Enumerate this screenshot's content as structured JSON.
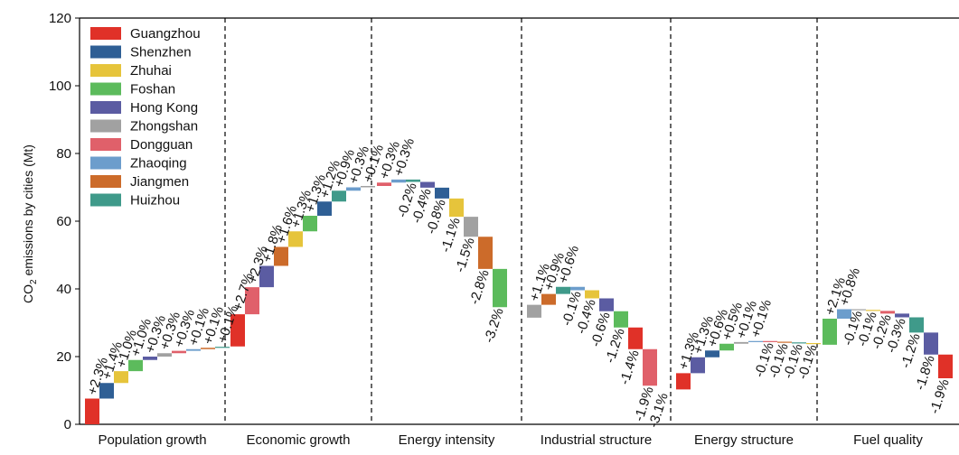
{
  "chart_data": {
    "type": "bar",
    "subtype": "waterfall",
    "ylabel": "CO2 emissions by cities (Mt)",
    "ylabel_main": "CO",
    "ylabel_sub": "2",
    "ylabel_rest": " emissions by cities (Mt)",
    "ylim": [
      0,
      120
    ],
    "yticks": [
      0,
      20,
      40,
      60,
      80,
      100,
      120
    ],
    "grid": false,
    "legend_position": "top-left",
    "cities": [
      {
        "name": "Guangzhou",
        "color": "#e03128"
      },
      {
        "name": "Shenzhen",
        "color": "#2f5f95"
      },
      {
        "name": "Zhuhai",
        "color": "#e6c43b"
      },
      {
        "name": "Foshan",
        "color": "#5cbb5c"
      },
      {
        "name": "Hong Kong",
        "color": "#5b5ca2"
      },
      {
        "name": "Zhongshan",
        "color": "#a1a1a1"
      },
      {
        "name": "Dongguan",
        "color": "#e0606a"
      },
      {
        "name": "Zhaoqing",
        "color": "#6c9dcc"
      },
      {
        "name": "Jiangmen",
        "color": "#cc6b2a"
      },
      {
        "name": "Huizhou",
        "color": "#3f9a8a"
      }
    ],
    "groups": [
      {
        "label": "Population growth",
        "start": 0,
        "bars": [
          {
            "city": "Guangzhou",
            "delta": 7.6,
            "label": "+2.3%"
          },
          {
            "city": "Shenzhen",
            "delta": 4.6,
            "label": "+1.4%"
          },
          {
            "city": "Zhuhai",
            "delta": 3.5,
            "label": "+1.0%"
          },
          {
            "city": "Foshan",
            "delta": 3.3,
            "label": "+1.0%"
          },
          {
            "city": "Hong Kong",
            "delta": 1.0,
            "label": "+0.3%"
          },
          {
            "city": "Zhongshan",
            "delta": 1.0,
            "label": "+0.3%"
          },
          {
            "city": "Dongguan",
            "delta": 0.7,
            "label": "+0.3%"
          },
          {
            "city": "Zhaoqing",
            "delta": 0.5,
            "label": "+0.1%"
          },
          {
            "city": "Jiangmen",
            "delta": 0.4,
            "label": "+0.1%"
          },
          {
            "city": "Huizhou",
            "delta": 0.3,
            "label": "+0.1%"
          }
        ]
      },
      {
        "label": "Economic growth",
        "start": 23,
        "bars": [
          {
            "city": "Guangzhou",
            "delta": 9.5,
            "label": "+2.7%"
          },
          {
            "city": "Dongguan",
            "delta": 8.0,
            "label": "+2.3%"
          },
          {
            "city": "Hong Kong",
            "delta": 6.3,
            "label": "+1.8%"
          },
          {
            "city": "Jiangmen",
            "delta": 5.6,
            "label": "+1.6%"
          },
          {
            "city": "Zhuhai",
            "delta": 4.6,
            "label": "+1.3%"
          },
          {
            "city": "Foshan",
            "delta": 4.6,
            "label": "+1.3%"
          },
          {
            "city": "Shenzhen",
            "delta": 4.2,
            "label": "+1.2%"
          },
          {
            "city": "Huizhou",
            "delta": 3.2,
            "label": "+0.9%"
          },
          {
            "city": "Zhaoqing",
            "delta": 1.0,
            "label": "+0.3%"
          },
          {
            "city": "Zhongshan",
            "delta": 0.4,
            "label": "+0.1%"
          }
        ]
      },
      {
        "label": "Energy intensity",
        "start": 70.4,
        "bars": [
          {
            "city": "Dongguan",
            "delta": 1.0,
            "label": "+0.3%"
          },
          {
            "city": "Zhaoqing",
            "delta": 0.9,
            "label": "+0.3%"
          },
          {
            "city": "Huizhou",
            "delta": -0.7,
            "label": "-0.2%"
          },
          {
            "city": "Hong Kong",
            "delta": -1.7,
            "label": "-0.4%"
          },
          {
            "city": "Shenzhen",
            "delta": -3.2,
            "label": "-0.8%"
          },
          {
            "city": "Zhuhai",
            "delta": -5.4,
            "label": "-1.1%"
          },
          {
            "city": "Zhongshan",
            "delta": -5.9,
            "label": "-1.5%"
          },
          {
            "city": "Jiangmen",
            "delta": -9.5,
            "label": "-2.8%"
          },
          {
            "city": "Foshan",
            "delta": -11.3,
            "label": "-3.2%"
          }
        ]
      },
      {
        "label": "Industrial structure",
        "start": 31.5,
        "bars": [
          {
            "city": "Zhongshan",
            "delta": 3.8,
            "label": "+1.1%"
          },
          {
            "city": "Jiangmen",
            "delta": 3.2,
            "label": "+0.9%"
          },
          {
            "city": "Huizhou",
            "delta": 2.1,
            "label": "+0.6%"
          },
          {
            "city": "Zhaoqing",
            "delta": -1.0,
            "label": "-0.1%"
          },
          {
            "city": "Zhuhai",
            "delta": -2.4,
            "label": "-0.4%"
          },
          {
            "city": "Hong Kong",
            "delta": -3.8,
            "label": "-0.6%"
          },
          {
            "city": "Foshan",
            "delta": -4.8,
            "label": "-1.2%"
          },
          {
            "city": "Guangzhou",
            "delta": -6.4,
            "label": "-1.4%"
          },
          {
            "city": "Dongguan",
            "delta": -10.8,
            "label": "-1.9%"
          }
        ],
        "extra_labels": [
          "-3.1%"
        ]
      },
      {
        "label": "Energy structure",
        "start": 10.3,
        "bars": [
          {
            "city": "Guangzhou",
            "delta": 4.8,
            "label": "+1.3%"
          },
          {
            "city": "Hong Kong",
            "delta": 4.7,
            "label": "+1.3%"
          },
          {
            "city": "Shenzhen",
            "delta": 2.0,
            "label": "+0.6%"
          },
          {
            "city": "Foshan",
            "delta": 2.0,
            "label": "+0.5%"
          },
          {
            "city": "Zhongshan",
            "delta": 0.5,
            "label": "+0.1%"
          },
          {
            "city": "Zhaoqing",
            "delta": 0.3,
            "label": "+0.1%"
          },
          {
            "city": "Dongguan",
            "delta": -0.2,
            "label": "-0.1%"
          },
          {
            "city": "Jiangmen",
            "delta": -0.2,
            "label": "-0.1%"
          },
          {
            "city": "Huizhou",
            "delta": -0.2,
            "label": "-0.1%"
          },
          {
            "city": "Zhuhai",
            "delta": -0.2,
            "label": "-0.1%"
          }
        ]
      },
      {
        "label": "Fuel quality",
        "start": 23.5,
        "bars": [
          {
            "city": "Foshan",
            "delta": 7.7,
            "label": "+2.1%"
          },
          {
            "city": "Zhaoqing",
            "delta": 2.8,
            "label": "+0.8%"
          },
          {
            "city": "Zhongshan",
            "delta": -0.2,
            "label": "-0.1%"
          },
          {
            "city": "Zhuhai",
            "delta": -0.3,
            "label": "-0.1%"
          },
          {
            "city": "Dongguan",
            "delta": -0.8,
            "label": "-0.2%"
          },
          {
            "city": "Hong Kong",
            "delta": -1.1,
            "label": "-0.3%"
          },
          {
            "city": "Huizhou",
            "delta": -4.5,
            "label": "-1.2%"
          },
          {
            "city": "Hong Kong",
            "delta": -6.5,
            "label": "-1.8%"
          },
          {
            "city": "Guangzhou",
            "delta": -7.0,
            "label": "-1.9%"
          }
        ]
      }
    ]
  }
}
